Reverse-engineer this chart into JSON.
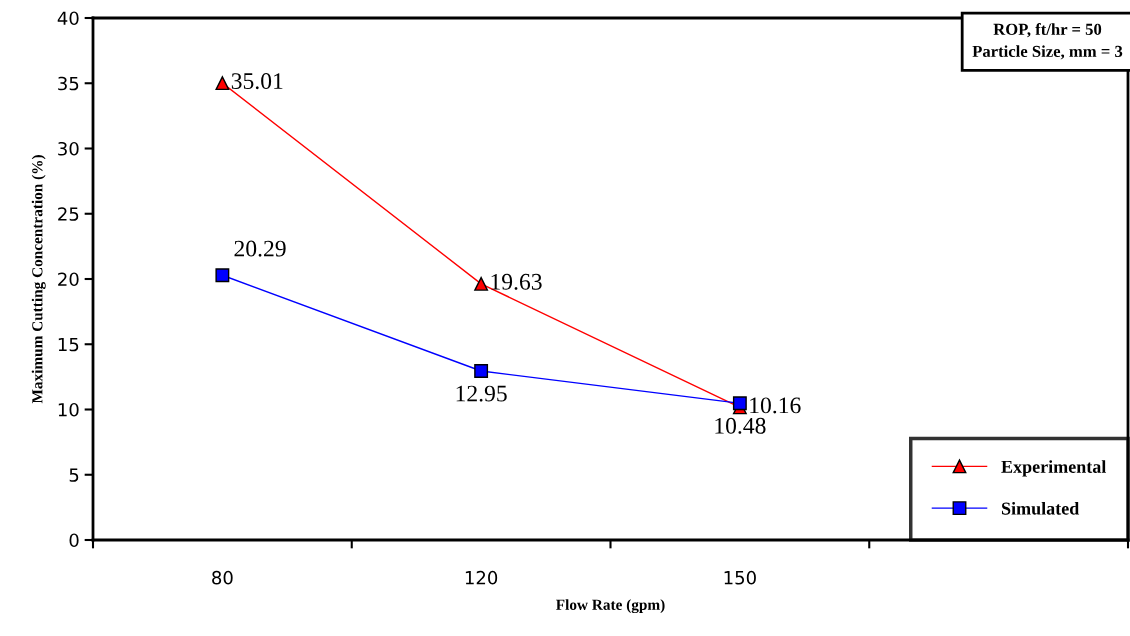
{
  "chart_data": {
    "type": "line",
    "xlabel": "Flow Rate (gpm)",
    "ylabel": "Maximum Cutting Concentration (%)",
    "categories": [
      "80",
      "120",
      "150"
    ],
    "series": [
      {
        "name": "Experimental",
        "color": "#ff0000",
        "marker": "triangle",
        "values": [
          35.01,
          19.63,
          10.16
        ]
      },
      {
        "name": "Simulated",
        "color": "#0000ff",
        "marker": "square",
        "values": [
          20.29,
          12.95,
          10.48
        ]
      }
    ],
    "ylim": [
      0,
      40
    ],
    "yticks": [
      0,
      5,
      10,
      15,
      20,
      25,
      30,
      35,
      40
    ],
    "data_labels": true,
    "grid": false,
    "legend": "bottom right",
    "annotations": [
      "ROP, ft/hr = 50\nParticle Size, mm = 3"
    ]
  }
}
